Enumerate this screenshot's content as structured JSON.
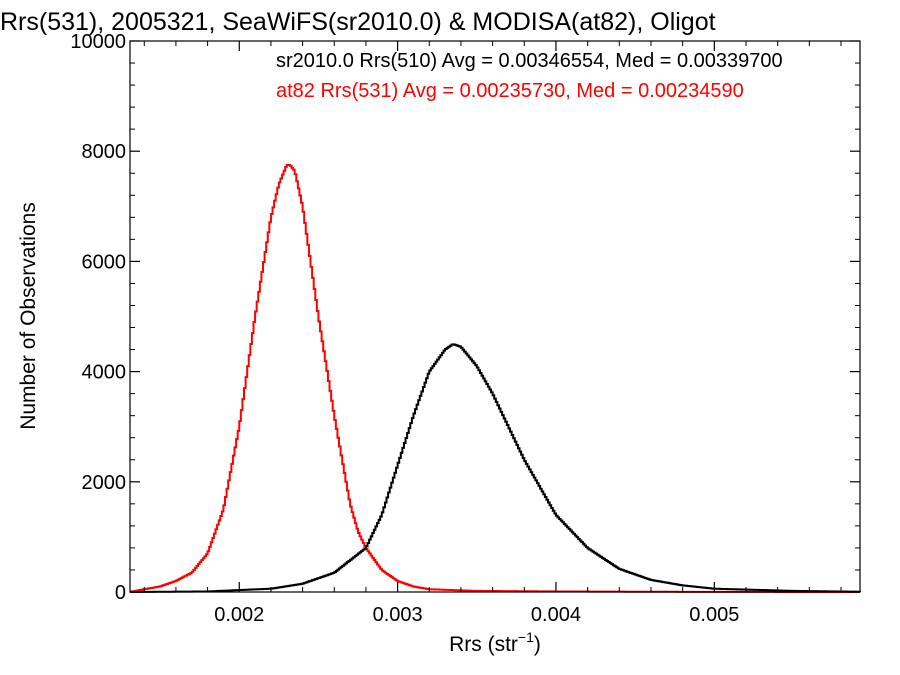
{
  "chart_data": {
    "type": "line",
    "title": "Rrs(531), 2005321, SeaWiFS(sr2010.0) & MODISA(at82), Oligot",
    "xlabel_base": "Rrs (str",
    "xlabel_sup": "−1",
    "xlabel_close": ")",
    "ylabel": "Number of Observations",
    "xlim": [
      0.00131,
      0.00592
    ],
    "ylim": [
      0,
      10000
    ],
    "x_ticks": [
      0.002,
      0.003,
      0.004,
      0.005
    ],
    "x_tick_labels": [
      "0.002",
      "0.003",
      "0.004",
      "0.005"
    ],
    "y_ticks": [
      0,
      2000,
      4000,
      6000,
      8000,
      10000
    ],
    "y_tick_labels": [
      "0",
      "2000",
      "4000",
      "6000",
      "8000",
      "10000"
    ],
    "grid": false,
    "annotations": [
      {
        "text": "sr2010.0 Rrs(510) Avg = 0.00346554, Med = 0.00339700",
        "color": "#000000"
      },
      {
        "text": "at82 Rrs(531) Avg = 0.00235730, Med = 0.00234590",
        "color": "#ff0000"
      }
    ],
    "series": [
      {
        "color": "#ff0000",
        "x": [
          0.00131,
          0.0014,
          0.0015,
          0.0016,
          0.0017,
          0.0018,
          0.0019,
          0.002,
          0.0021,
          0.0022,
          0.00225,
          0.0023,
          0.00232,
          0.00235,
          0.0024,
          0.0025,
          0.0026,
          0.0027,
          0.00275,
          0.0028,
          0.0029,
          0.003,
          0.0031,
          0.0032,
          0.0035,
          0.004,
          0.0045,
          0.005,
          0.00592
        ],
        "y": [
          0,
          50,
          100,
          200,
          350,
          700,
          1500,
          3000,
          5000,
          6800,
          7400,
          7750,
          7750,
          7650,
          7000,
          5000,
          3200,
          1600,
          1100,
          800,
          400,
          200,
          100,
          50,
          20,
          10,
          5,
          2,
          0
        ]
      },
      {
        "color": "#000000",
        "x": [
          0.00131,
          0.0018,
          0.0022,
          0.0024,
          0.0026,
          0.0028,
          0.0029,
          0.003,
          0.0031,
          0.0032,
          0.0033,
          0.00335,
          0.0034,
          0.0035,
          0.0036,
          0.0037,
          0.0038,
          0.004,
          0.0042,
          0.0044,
          0.0046,
          0.0048,
          0.005,
          0.0055,
          0.00592
        ],
        "y": [
          0,
          10,
          60,
          150,
          350,
          800,
          1400,
          2300,
          3200,
          4000,
          4400,
          4500,
          4450,
          4100,
          3600,
          3000,
          2400,
          1400,
          800,
          420,
          220,
          120,
          60,
          20,
          5
        ]
      }
    ]
  }
}
